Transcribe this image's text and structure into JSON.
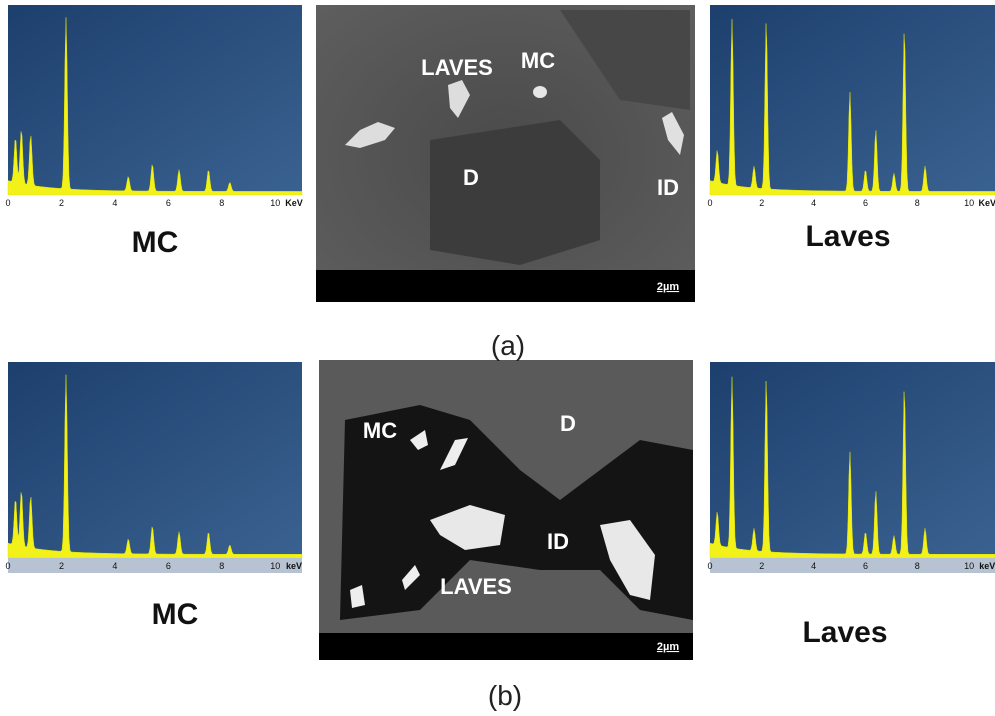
{
  "panels": [
    {
      "caption": "(a)",
      "left": {
        "label": "MC",
        "xticks": [
          0,
          2,
          4,
          6,
          8,
          10
        ],
        "unit": "KeV"
      },
      "image": {
        "labels": [
          "LAVES",
          "MC",
          "D",
          "ID"
        ],
        "scale": "2µm"
      },
      "right": {
        "label": "Laves",
        "xticks": [
          0,
          2,
          4,
          6,
          8,
          10
        ],
        "unit": "KeV"
      }
    },
    {
      "caption": "(b)",
      "left": {
        "label": "MC",
        "xticks": [
          0,
          2,
          4,
          6,
          8,
          10
        ],
        "unit": "keV"
      },
      "image": {
        "labels": [
          "MC",
          "D",
          "ID",
          "LAVES"
        ],
        "scale": "2µm"
      },
      "right": {
        "label": "Laves",
        "xticks": [
          0,
          2,
          4,
          6,
          8,
          10
        ],
        "unit": "keV"
      }
    }
  ]
}
